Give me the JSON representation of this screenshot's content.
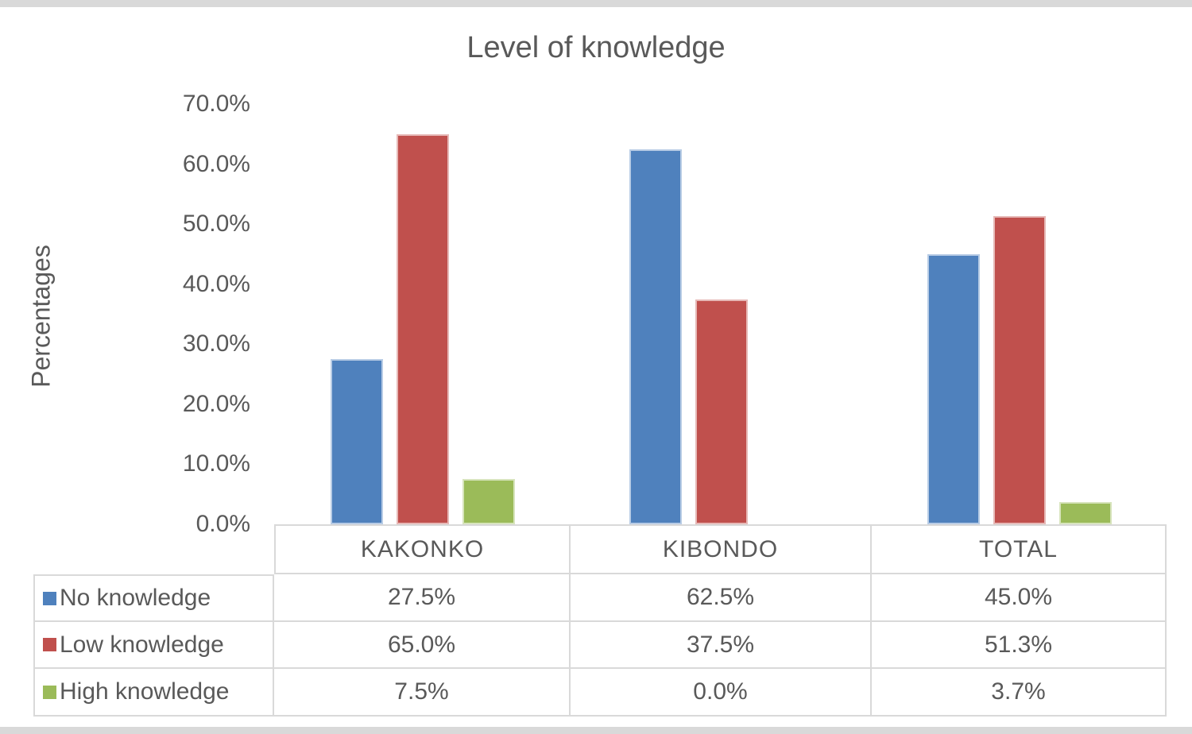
{
  "frame_color": "#d9d9d9",
  "text_color": "#595959",
  "chart_data": {
    "type": "bar",
    "title": "Level of knowledge",
    "ylabel": "Percentages",
    "xlabel": "",
    "categories": [
      "KAKONKO",
      "KIBONDO",
      "TOTAL"
    ],
    "series": [
      {
        "name": "No knowledge",
        "color": "#4f81bd",
        "values": [
          27.5,
          62.5,
          45.0
        ],
        "labels": [
          "27.5%",
          "62.5%",
          "45.0%"
        ]
      },
      {
        "name": "Low knowledge",
        "color": "#c0504d",
        "values": [
          65.0,
          37.5,
          51.3
        ],
        "labels": [
          "65.0%",
          "37.5%",
          "51.3%"
        ]
      },
      {
        "name": "High knowledge",
        "color": "#9bbb59",
        "values": [
          7.5,
          0.0,
          3.7
        ],
        "labels": [
          "7.5%",
          "0.0%",
          "3.7%"
        ]
      }
    ],
    "y_ticks": [
      "70.0%",
      "60.0%",
      "50.0%",
      "40.0%",
      "30.0%",
      "20.0%",
      "10.0%",
      "0.0%"
    ],
    "y_tick_values": [
      70,
      60,
      50,
      40,
      30,
      20,
      10,
      0
    ],
    "ylim": [
      0,
      70
    ],
    "grid": false,
    "legend_position": "table-left"
  }
}
